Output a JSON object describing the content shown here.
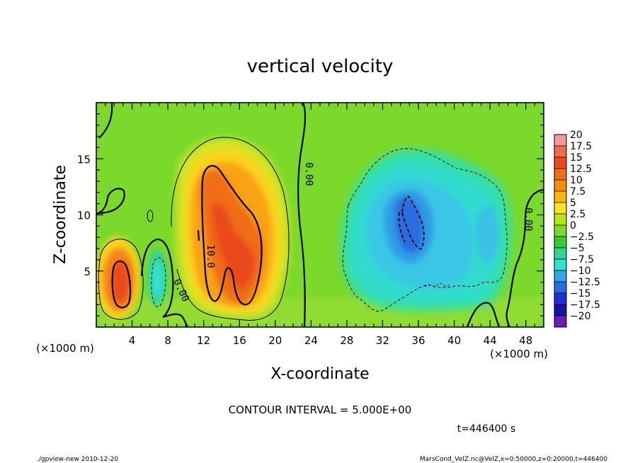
{
  "chart_data": {
    "type": "heatmap",
    "title": "vertical velocity",
    "xlabel": "X-coordinate",
    "ylabel": "Z-coordinate",
    "x_unit": "(×1000 m)",
    "y_unit": "(×1000 m)",
    "xlim": [
      0,
      50
    ],
    "ylim": [
      0,
      20
    ],
    "x_ticks": [
      "4",
      "8",
      "12",
      "16",
      "20",
      "24",
      "28",
      "32",
      "36",
      "40",
      "44",
      "48"
    ],
    "y_ticks": [
      "5",
      "10",
      "15"
    ],
    "colorbar": {
      "levels": [
        "20",
        "17.5",
        "15",
        "12.5",
        "10",
        "7.5",
        "5",
        "2.5",
        "0",
        "−2.5",
        "−5",
        "−7.5",
        "−10",
        "−12.5",
        "−15",
        "−17.5",
        "−20"
      ],
      "colors": [
        "#f2999e",
        "#ee6c4a",
        "#ea4a1c",
        "#ef6d14",
        "#f58c0e",
        "#f9b414",
        "#fbe51b",
        "#b2e51a",
        "#7ad92a",
        "#33cc33",
        "#32d68e",
        "#33e0cf",
        "#2fa6e6",
        "#2a6ce0",
        "#2030d6",
        "#1414a8",
        "#6a1fb0"
      ]
    },
    "contour_labels": [
      "0.00",
      "10.0",
      "0.00",
      "0.00"
    ],
    "features": [
      {
        "kind": "updraft",
        "x": 3,
        "z": 4.5,
        "w": 10
      },
      {
        "kind": "updraft",
        "x": 15,
        "z": 8.5,
        "w": 13
      },
      {
        "kind": "downdraft",
        "x": 34.5,
        "z": 9.5,
        "w": -10
      }
    ]
  },
  "footer": {
    "contour_interval": "CONTOUR INTERVAL = 5.000E+00",
    "time": "t=446400  s",
    "program": "./gpview-new   2010-12-20",
    "source": "MarsCond_VelZ.nc@VelZ,x=0:50000,z=0:20000,t=446400"
  }
}
